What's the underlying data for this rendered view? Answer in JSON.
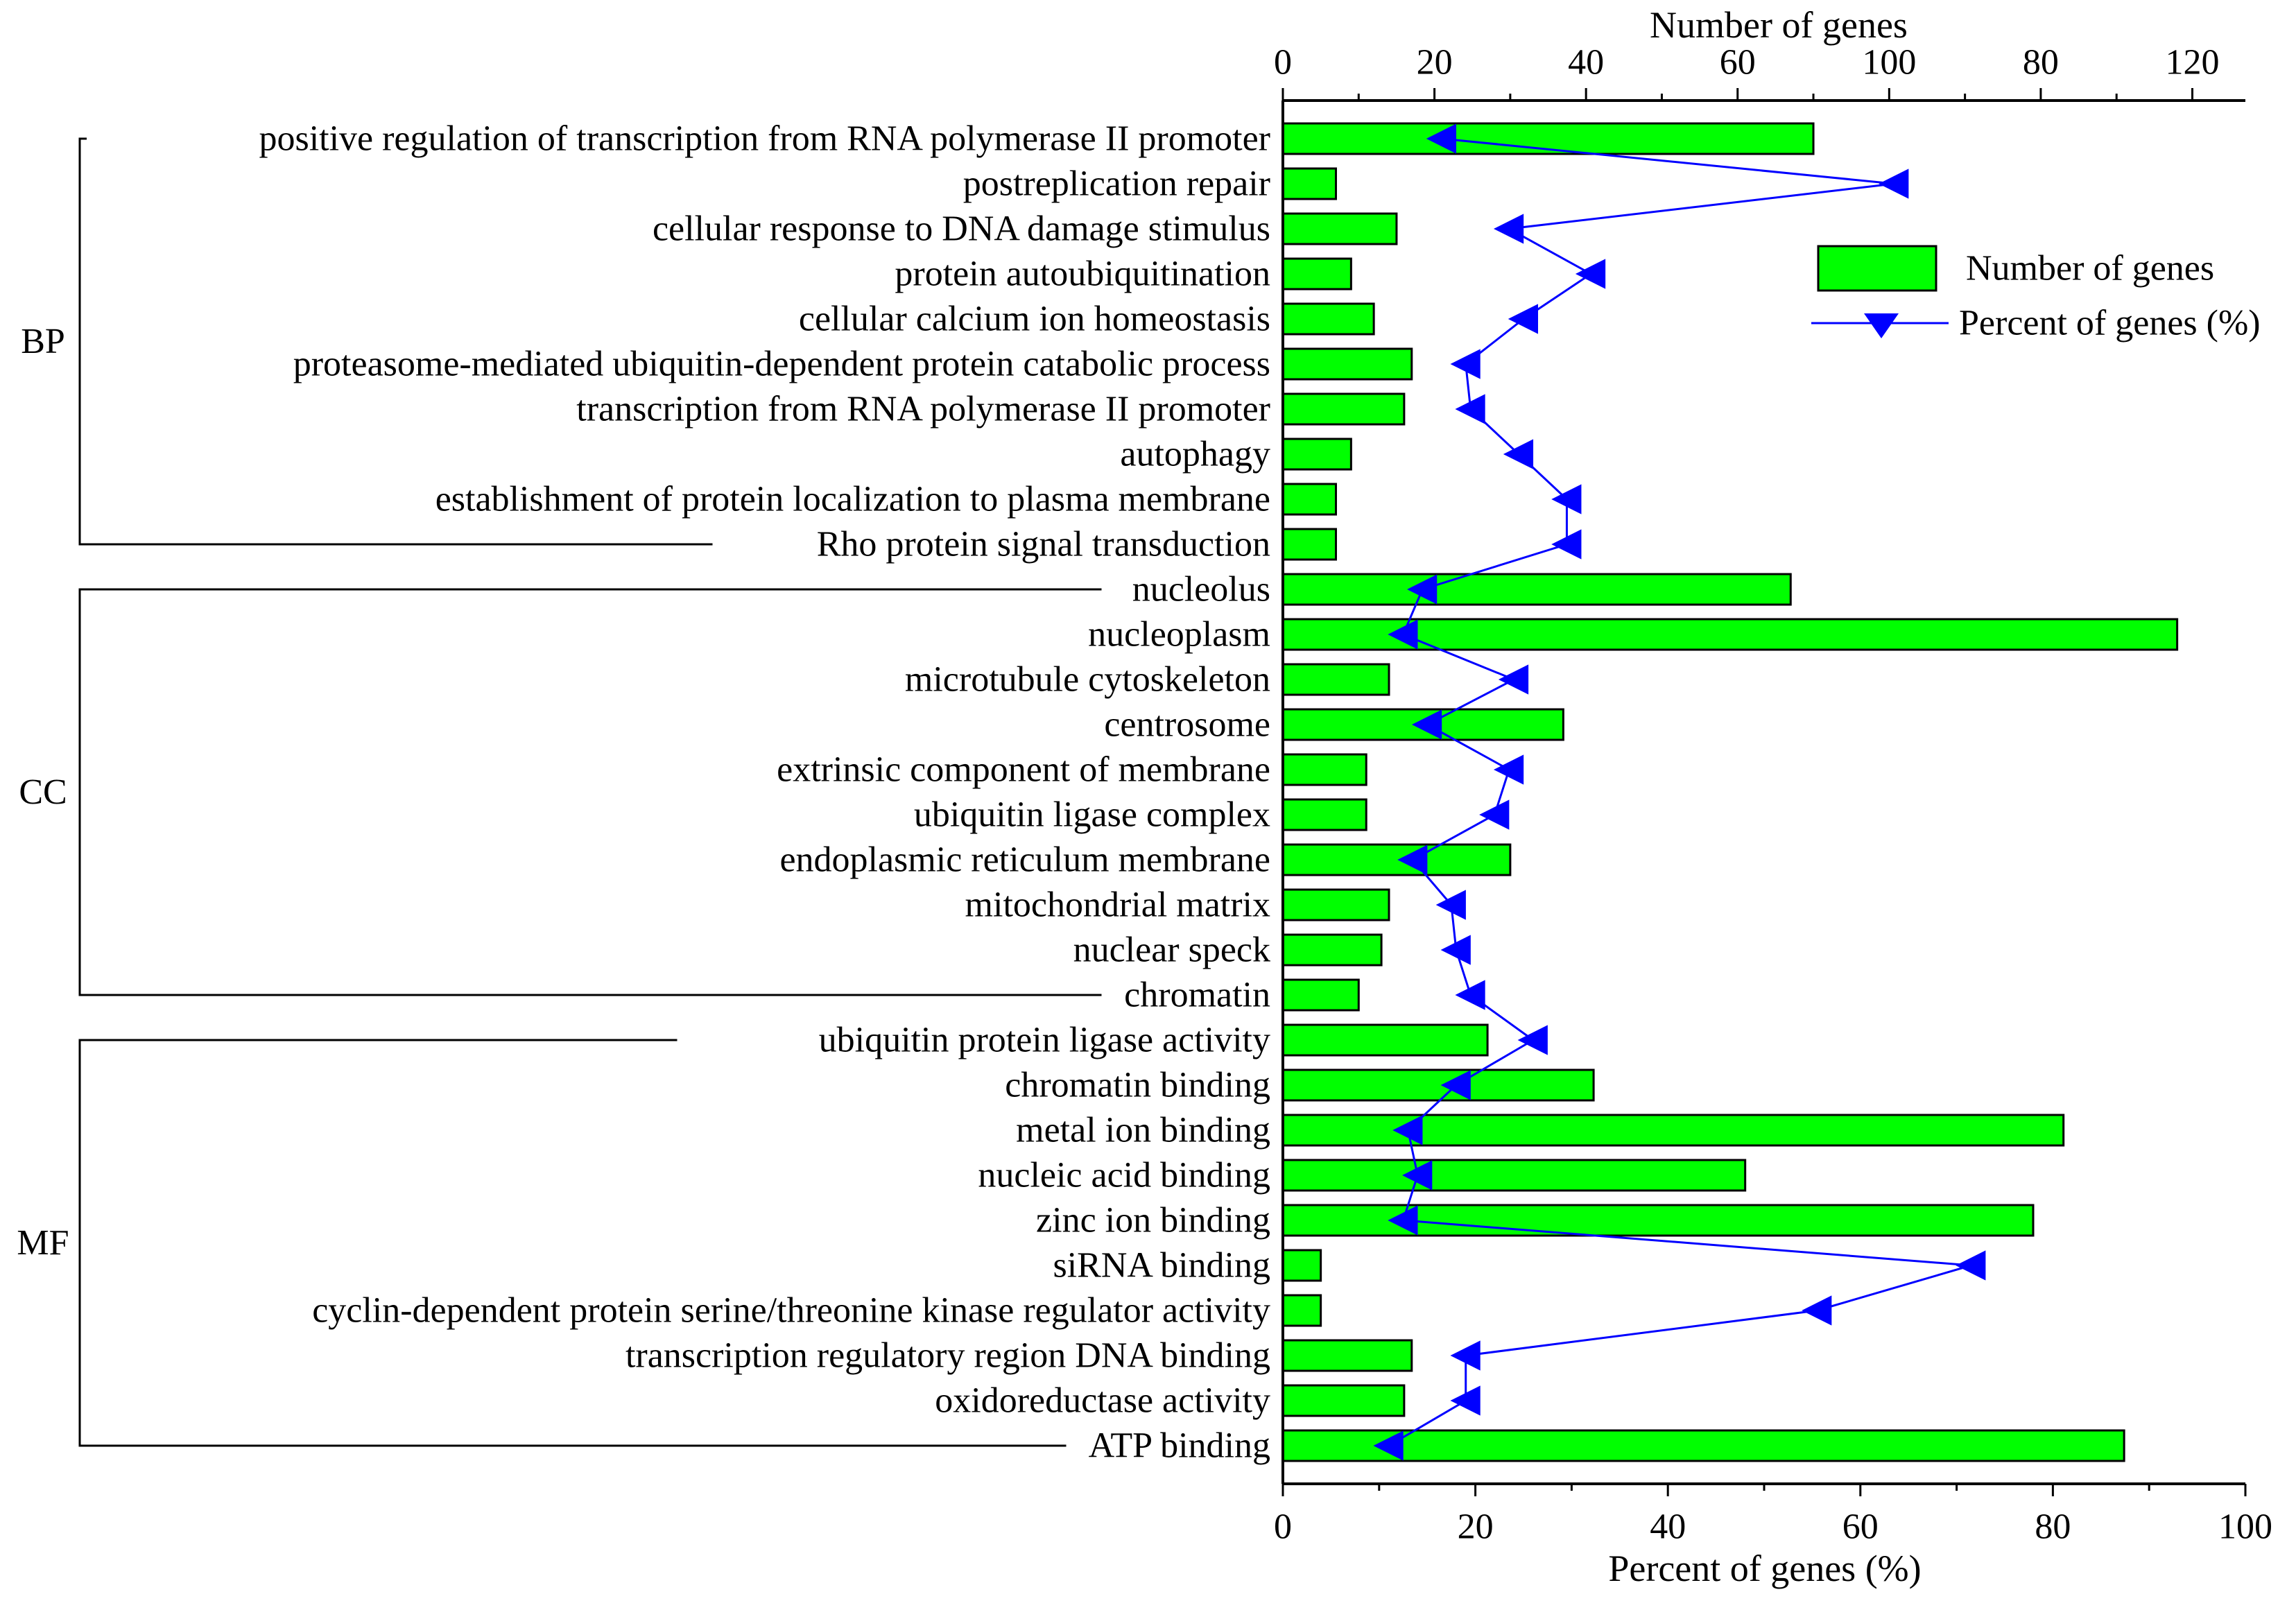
{
  "chart_data": {
    "type": "bar",
    "orientation": "horizontal",
    "top_axis": {
      "label": "Number of genes",
      "ticks": [
        "0",
        "20",
        "40",
        "60",
        "100",
        "80",
        "120"
      ],
      "range": [
        0,
        127
      ]
    },
    "bottom_axis": {
      "label": "Percent of  genes (%)",
      "ticks": [
        "0",
        "20",
        "40",
        "60",
        "80",
        "100"
      ],
      "range": [
        0,
        100
      ]
    },
    "legend": {
      "placement": "top-right",
      "bar_label": "Number of genes",
      "line_label": "Percent of  genes (%)"
    },
    "groups": [
      {
        "label": "BP",
        "start": 0,
        "end": 9
      },
      {
        "label": "CC",
        "start": 10,
        "end": 19
      },
      {
        "label": "MF",
        "start": 20,
        "end": 29
      }
    ],
    "categories": [
      "positive regulation of transcription from RNA polymerase II promoter",
      "postreplication repair",
      "cellular response to DNA damage stimulus",
      "protein autoubiquitination",
      "cellular calcium ion homeostasis",
      "proteasome-mediated ubiquitin-dependent protein catabolic process",
      "transcription from RNA polymerase II promoter",
      "autophagy",
      "establishment of protein localization to plasma membrane",
      "Rho protein signal transduction",
      "nucleolus",
      "nucleoplasm",
      "microtubule cytoskeleton",
      "centrosome",
      "extrinsic component of membrane",
      "ubiquitin ligase complex",
      "endoplasmic reticulum membrane",
      "mitochondrial matrix",
      "nuclear speck",
      "chromatin",
      "ubiquitin protein ligase activity",
      "chromatin binding",
      "metal ion binding",
      "nucleic acid binding",
      "zinc ion binding",
      "siRNA binding",
      "cyclin-dependent protein serine/threonine kinase regulator activity",
      "transcription regulatory region DNA binding",
      "oxidoreductase activity",
      "ATP binding"
    ],
    "series": [
      {
        "name": "Number of genes",
        "type": "bar",
        "color": "#00ff00",
        "values": [
          70,
          7,
          15,
          9,
          12,
          17,
          16,
          9,
          7,
          7,
          67,
          118,
          14,
          37,
          11,
          11,
          30,
          14,
          13,
          10,
          27,
          41,
          103,
          61,
          99,
          5,
          5,
          17,
          16,
          111
        ]
      },
      {
        "name": "Percent of  genes (%)",
        "type": "line",
        "color": "#0000ff",
        "values": [
          16.5,
          63.5,
          23.5,
          32,
          25,
          19,
          19.5,
          24.5,
          29.5,
          29.5,
          14.5,
          12.5,
          24,
          15,
          23.5,
          22,
          13.5,
          17.5,
          18,
          19.5,
          26,
          18,
          13,
          14,
          12.5,
          71.5,
          55.5,
          19,
          19,
          11
        ]
      }
    ]
  }
}
